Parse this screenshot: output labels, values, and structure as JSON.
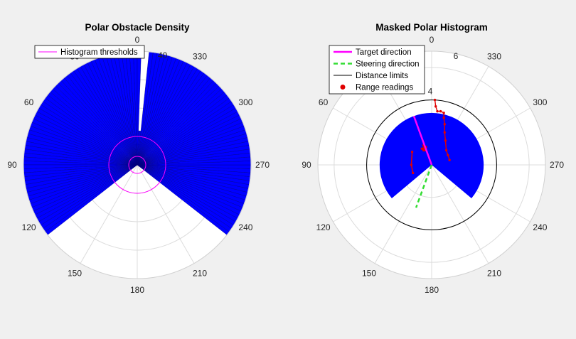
{
  "figure": {
    "background": "#f0f0f0"
  },
  "chart_data": [
    {
      "type": "polar-histogram",
      "title": "Polar Obstacle Density",
      "theta_zero": "top",
      "theta_direction": "counterclockwise",
      "theta_ticks": [
        "0",
        "30",
        "60",
        "90",
        "120",
        "150",
        "180",
        "210",
        "240",
        "270",
        "300",
        "330"
      ],
      "r_tick": "40",
      "r_max": 40,
      "histogram": {
        "color": "#0000ff",
        "value": 40,
        "bins_deg": {
          "start": 0,
          "end": 360,
          "step": 2
        },
        "empty_sectors_deg": [
          [
            128,
            232
          ]
        ],
        "notch_deg": {
          "center": 356,
          "width": 6,
          "value": 12
        }
      },
      "legend": {
        "location": "top-left",
        "entries": [
          {
            "label": "Histogram thresholds",
            "color": "#ff00ff",
            "style": "line"
          }
        ]
      },
      "thresholds": {
        "color": "#ff00ff",
        "values": [
          3,
          10
        ]
      }
    },
    {
      "type": "polar-histogram",
      "title": "Masked Polar Histogram",
      "theta_zero": "top",
      "theta_direction": "counterclockwise",
      "theta_ticks": [
        "0",
        "30",
        "60",
        "90",
        "120",
        "150",
        "180",
        "210",
        "240",
        "270",
        "300",
        "330"
      ],
      "r_ticks": [
        "4",
        "6"
      ],
      "r_max": 7,
      "masked_sector": {
        "color": "#0000ff",
        "radius": 3.2,
        "from_deg": -130,
        "to_deg": 130
      },
      "distance_limit": {
        "radius": 4,
        "color": "#000000"
      },
      "target_direction": {
        "angle_deg": 20,
        "length": 3.2,
        "color": "#ff00ff"
      },
      "steering_direction": {
        "angle_deg": 160,
        "length": 2.8,
        "color": "#33dd33"
      },
      "range_readings": {
        "color": "#e00000",
        "points": [
          [
            0.2,
            4.0
          ],
          [
            0.25,
            3.6
          ],
          [
            0.35,
            3.3
          ],
          [
            0.55,
            3.3
          ],
          [
            0.75,
            3.2
          ],
          [
            0.75,
            2.9
          ],
          [
            0.8,
            2.5
          ],
          [
            0.8,
            2.0
          ],
          [
            0.85,
            1.5
          ],
          [
            0.9,
            0.9
          ],
          [
            1.0,
            0.6
          ],
          [
            1.1,
            0.3
          ],
          [
            -0.4,
            0.9
          ],
          [
            -0.5,
            1.2
          ],
          [
            -0.5,
            0.9
          ],
          [
            -0.6,
            1.0
          ],
          [
            -0.35,
            1.1
          ],
          [
            -1.2,
            0.8
          ],
          [
            -1.25,
            0.0
          ],
          [
            -1.15,
            -0.5
          ]
        ]
      },
      "legend": {
        "location": "top-left",
        "entries": [
          {
            "label": "Target direction",
            "color": "#ff00ff",
            "style": "line-thick"
          },
          {
            "label": "Steering direction",
            "color": "#33dd33",
            "style": "dashed"
          },
          {
            "label": "Distance limits",
            "color": "#000000",
            "style": "line"
          },
          {
            "label": "Range readings",
            "color": "#e00000",
            "style": "dot"
          }
        ]
      }
    }
  ]
}
